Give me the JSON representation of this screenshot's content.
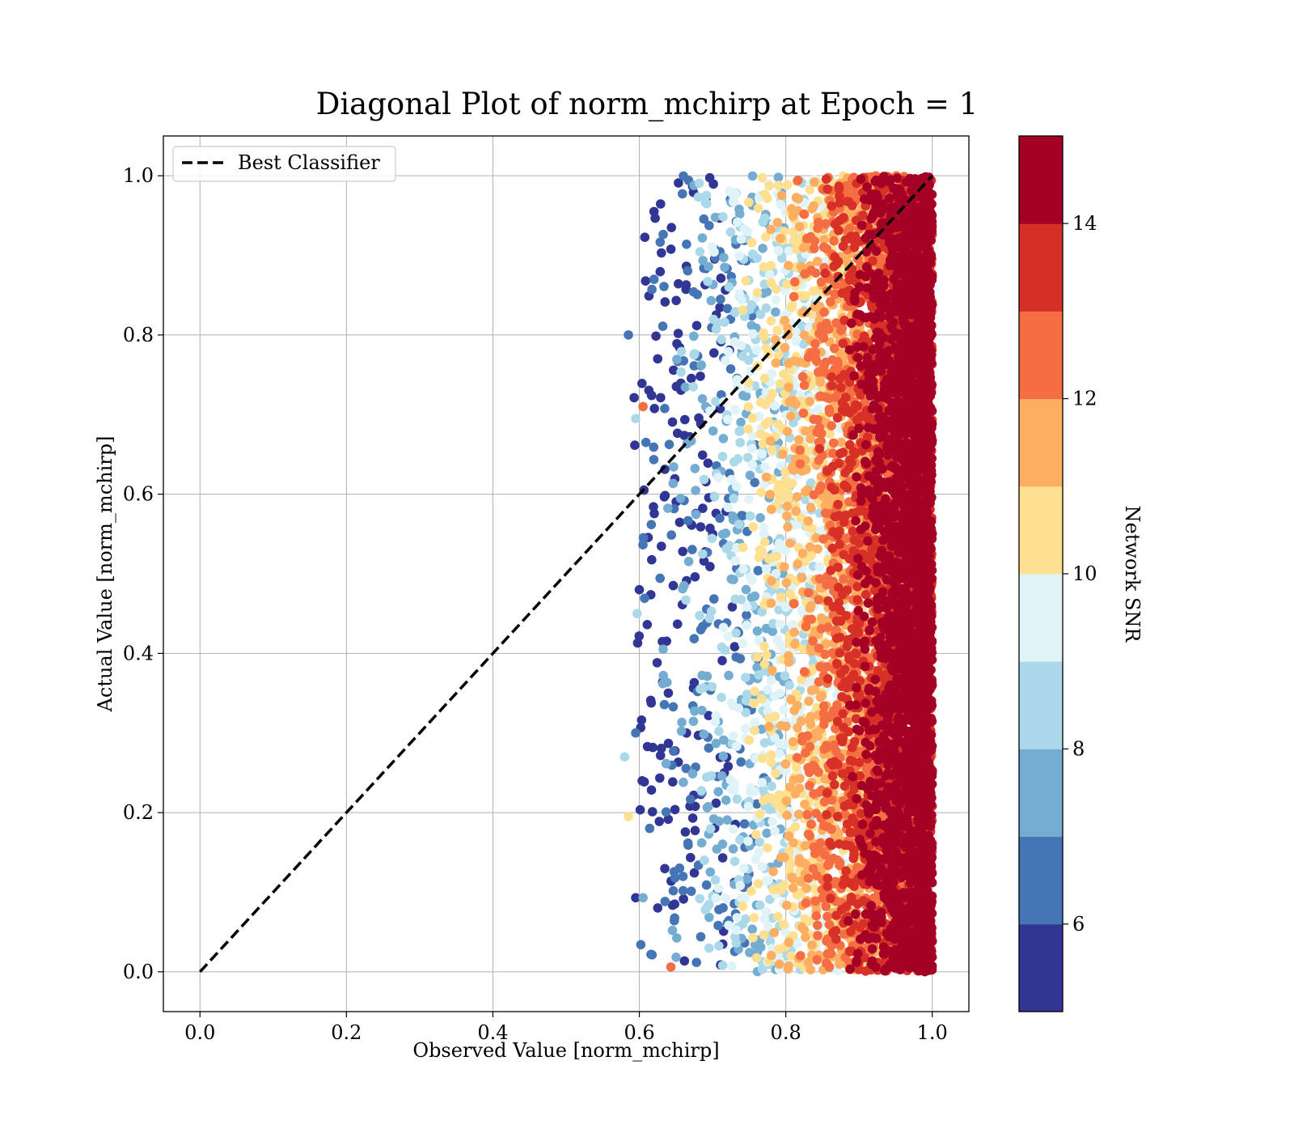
{
  "chart_data": {
    "type": "scatter",
    "title": "Diagonal Plot of norm_mchirp at Epoch = 1",
    "xlabel": "Observed Value [norm_mchirp]",
    "ylabel": "Actual Value [norm_mchirp]",
    "xlim": [
      -0.05,
      1.05
    ],
    "ylim": [
      -0.05,
      1.05
    ],
    "xticks": [
      "0.0",
      "0.2",
      "0.4",
      "0.6",
      "0.8",
      "1.0"
    ],
    "yticks": [
      "0.0",
      "0.2",
      "0.4",
      "0.6",
      "0.8",
      "1.0"
    ],
    "grid": true,
    "legend": {
      "position": "upper-left",
      "entries": [
        {
          "label": "Best Classifier",
          "style": "black dashed line"
        }
      ]
    },
    "reference_line": {
      "name": "Best Classifier",
      "x": [
        0.0,
        1.0
      ],
      "y": [
        0.0,
        1.0
      ],
      "color": "#000000",
      "dash": true
    },
    "colorbar": {
      "label": "Network SNR",
      "vmin": 5,
      "vmax": 15,
      "ticks": [
        "6",
        "8",
        "10",
        "12",
        "14"
      ],
      "colormap": "RdYlBu_r",
      "colors": [
        "#313695",
        "#4575b4",
        "#74add1",
        "#abd9e9",
        "#e0f3f8",
        "#fee090",
        "#fdae61",
        "#f46d43",
        "#d73027",
        "#a50026"
      ]
    },
    "scatter_distribution": {
      "x_range": [
        0.58,
        1.0
      ],
      "y_range": [
        0.0,
        1.0
      ],
      "n_points": 9000,
      "note": "x values concentrate near 1.0; points with higher Network SNR lie closer to x = 1.0"
    },
    "outlier_points": [
      {
        "x": 0.585,
        "y": 0.8,
        "snr": 6.5
      },
      {
        "x": 0.62,
        "y": 0.955,
        "snr": 5.3
      },
      {
        "x": 0.62,
        "y": 0.87,
        "snr": 6.5
      },
      {
        "x": 0.595,
        "y": 0.695,
        "snr": 8.3
      },
      {
        "x": 0.605,
        "y": 0.71,
        "snr": 12.5
      },
      {
        "x": 0.6,
        "y": 0.48,
        "snr": 5.5
      },
      {
        "x": 0.597,
        "y": 0.45,
        "snr": 8.2
      },
      {
        "x": 0.58,
        "y": 0.27,
        "snr": 8.5
      },
      {
        "x": 0.595,
        "y": 0.3,
        "snr": 6.5
      },
      {
        "x": 0.585,
        "y": 0.195,
        "snr": 10.5
      },
      {
        "x": 0.595,
        "y": 0.093,
        "snr": 5.5
      },
      {
        "x": 0.605,
        "y": 0.093,
        "snr": 7.0
      },
      {
        "x": 0.643,
        "y": 0.006,
        "snr": 12.5
      },
      {
        "x": 0.625,
        "y": 0.77,
        "snr": 5.5
      }
    ]
  }
}
